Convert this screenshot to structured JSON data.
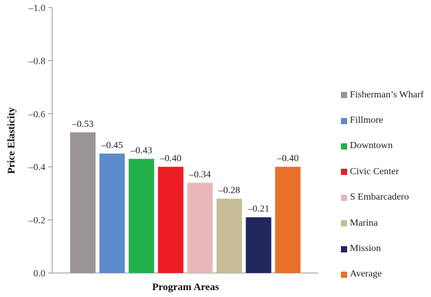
{
  "chart_data": {
    "type": "bar",
    "title": "",
    "xlabel": "Program Areas",
    "ylabel": "Price Elasticity",
    "ylim": [
      0.0,
      -1.0
    ],
    "yticks": [
      "0.0",
      "–0.2",
      "–0.4",
      "–0.6",
      "–0.8",
      "–1.0"
    ],
    "ytick_values": [
      0.0,
      -0.2,
      -0.4,
      -0.6,
      -0.8,
      -1.0
    ],
    "grid": false,
    "legend_position": "right",
    "categories": [
      "Fisherman’s Wharf",
      "Fillmore",
      "Downtown",
      "Civic Center",
      "S Embarcadero",
      "Marina",
      "Mission",
      "Average"
    ],
    "values": [
      -0.53,
      -0.45,
      -0.43,
      -0.4,
      -0.34,
      -0.28,
      -0.21,
      -0.4
    ],
    "data_labels": [
      "–0.53",
      "–0.45",
      "–0.43",
      "–0.40",
      "–0.34",
      "–0.28",
      "–0.21",
      "–0.40"
    ],
    "colors": [
      "#9a9594",
      "#5b8bc9",
      "#22b04b",
      "#ec1c24",
      "#e8b8b8",
      "#c6bd98",
      "#1f275e",
      "#e8702a"
    ]
  }
}
